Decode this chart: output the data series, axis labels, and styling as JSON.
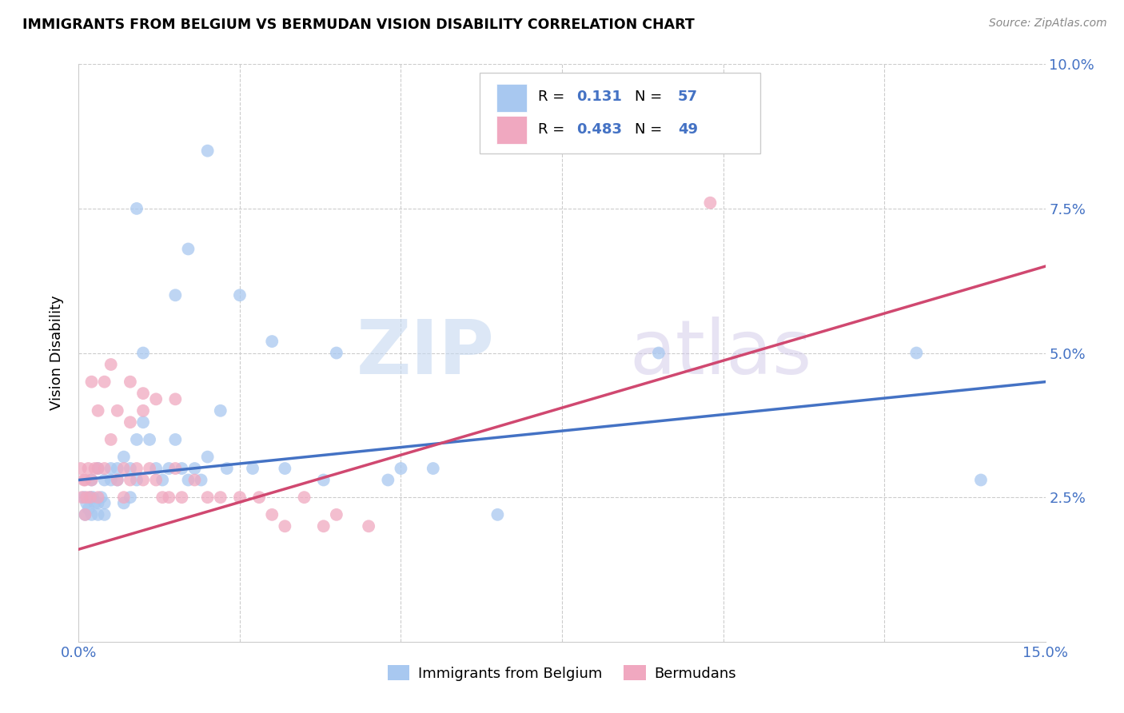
{
  "title": "IMMIGRANTS FROM BELGIUM VS BERMUDAN VISION DISABILITY CORRELATION CHART",
  "source": "Source: ZipAtlas.com",
  "ylabel": "Vision Disability",
  "blue_color": "#a8c8f0",
  "pink_color": "#f0a8c0",
  "blue_line_color": "#4472c4",
  "pink_line_color": "#d04870",
  "watermark_zip": "ZIP",
  "watermark_atlas": "atlas",
  "blue_label": "Immigrants from Belgium",
  "pink_label": "Bermudans",
  "legend_r1": "0.131",
  "legend_n1": "57",
  "legend_r2": "0.483",
  "legend_n2": "49",
  "blue_scatter_x": [
    0.0008,
    0.001,
    0.0012,
    0.0015,
    0.0018,
    0.002,
    0.002,
    0.0022,
    0.0025,
    0.003,
    0.003,
    0.003,
    0.0035,
    0.004,
    0.004,
    0.004,
    0.005,
    0.005,
    0.006,
    0.006,
    0.007,
    0.007,
    0.008,
    0.008,
    0.009,
    0.009,
    0.01,
    0.01,
    0.011,
    0.012,
    0.013,
    0.014,
    0.015,
    0.015,
    0.016,
    0.017,
    0.018,
    0.019,
    0.02,
    0.022,
    0.023,
    0.025,
    0.027,
    0.03,
    0.032,
    0.038,
    0.04,
    0.048,
    0.05,
    0.055,
    0.065,
    0.09,
    0.13,
    0.14,
    0.009,
    0.017,
    0.02
  ],
  "blue_scatter_y": [
    0.025,
    0.022,
    0.024,
    0.023,
    0.025,
    0.022,
    0.028,
    0.025,
    0.024,
    0.022,
    0.024,
    0.03,
    0.025,
    0.024,
    0.028,
    0.022,
    0.028,
    0.03,
    0.028,
    0.03,
    0.032,
    0.024,
    0.03,
    0.025,
    0.035,
    0.028,
    0.038,
    0.05,
    0.035,
    0.03,
    0.028,
    0.03,
    0.035,
    0.06,
    0.03,
    0.028,
    0.03,
    0.028,
    0.032,
    0.04,
    0.03,
    0.06,
    0.03,
    0.052,
    0.03,
    0.028,
    0.05,
    0.028,
    0.03,
    0.03,
    0.022,
    0.05,
    0.05,
    0.028,
    0.075,
    0.068,
    0.085
  ],
  "pink_scatter_x": [
    0.0003,
    0.0005,
    0.0008,
    0.001,
    0.001,
    0.0012,
    0.0015,
    0.0018,
    0.002,
    0.002,
    0.0025,
    0.003,
    0.003,
    0.003,
    0.004,
    0.004,
    0.005,
    0.005,
    0.006,
    0.006,
    0.007,
    0.007,
    0.008,
    0.008,
    0.009,
    0.01,
    0.01,
    0.011,
    0.012,
    0.013,
    0.014,
    0.015,
    0.016,
    0.018,
    0.02,
    0.022,
    0.025,
    0.028,
    0.03,
    0.032,
    0.035,
    0.038,
    0.04,
    0.045,
    0.008,
    0.01,
    0.012,
    0.015,
    0.098
  ],
  "pink_scatter_y": [
    0.03,
    0.025,
    0.028,
    0.022,
    0.028,
    0.025,
    0.03,
    0.025,
    0.028,
    0.045,
    0.03,
    0.025,
    0.03,
    0.04,
    0.045,
    0.03,
    0.048,
    0.035,
    0.04,
    0.028,
    0.03,
    0.025,
    0.038,
    0.028,
    0.03,
    0.028,
    0.04,
    0.03,
    0.028,
    0.025,
    0.025,
    0.03,
    0.025,
    0.028,
    0.025,
    0.025,
    0.025,
    0.025,
    0.022,
    0.02,
    0.025,
    0.02,
    0.022,
    0.02,
    0.045,
    0.043,
    0.042,
    0.042,
    0.076
  ]
}
